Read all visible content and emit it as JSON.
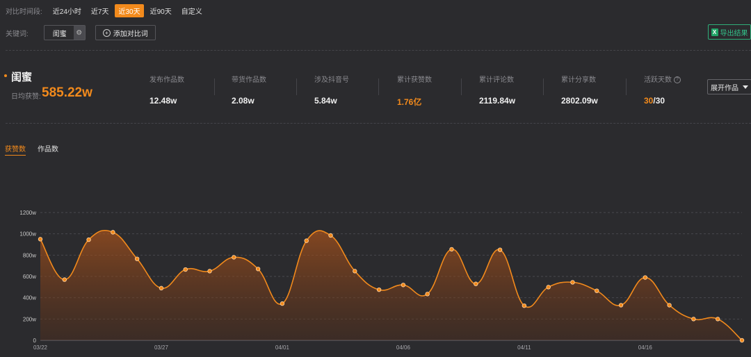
{
  "time_filter": {
    "label": "对比时间段:",
    "options": [
      "近24小时",
      "近7天",
      "近30天",
      "近90天",
      "自定义"
    ],
    "active": "近30天"
  },
  "keyword": {
    "label": "关键词:",
    "value": "闺蜜",
    "add_label": "添加对比词",
    "export_label": "导出结果"
  },
  "summary": {
    "title": "闺蜜",
    "avg_label": "日均获赞:",
    "avg_value": "585.22w",
    "stats": [
      {
        "label": "发布作品数",
        "value": "12.48w"
      },
      {
        "label": "带货作品数",
        "value": "2.08w"
      },
      {
        "label": "涉及抖音号",
        "value": "5.84w"
      },
      {
        "label": "累计获赞数",
        "value": "1.76亿",
        "highlight": true
      },
      {
        "label": "累计评论数",
        "value": "2119.84w"
      },
      {
        "label": "累计分享数",
        "value": "2802.09w"
      },
      {
        "label": "活跃天数",
        "value_a": "30",
        "value_b": "/30"
      }
    ],
    "expand_label": "展开作品"
  },
  "tabs": [
    "获赞数",
    "作品数"
  ],
  "colors": {
    "accent": "#f28a1c",
    "bg": "#2b2b2e",
    "export": "#2fae79"
  },
  "chart_data": {
    "type": "area",
    "x_ticks": [
      "03/22",
      "03/27",
      "04/01",
      "04/06",
      "04/11",
      "04/16"
    ],
    "y_ticks": [
      "0",
      "200w",
      "400w",
      "600w",
      "800w",
      "1000w",
      "1200w"
    ],
    "ylim": [
      0,
      1200
    ],
    "x": [
      "03/22",
      "03/23",
      "03/24",
      "03/25",
      "03/26",
      "03/27",
      "03/28",
      "03/29",
      "03/30",
      "03/31",
      "04/01",
      "04/02",
      "04/03",
      "04/04",
      "04/05",
      "04/06",
      "04/07",
      "04/08",
      "04/09",
      "04/10",
      "04/11",
      "04/12",
      "04/13",
      "04/14",
      "04/15",
      "04/16",
      "04/17",
      "04/18",
      "04/19",
      "04/20"
    ],
    "values": [
      950,
      570,
      945,
      1015,
      765,
      490,
      665,
      650,
      780,
      670,
      345,
      935,
      985,
      650,
      475,
      520,
      435,
      855,
      530,
      850,
      325,
      500,
      545,
      465,
      330,
      590,
      330,
      200,
      200,
      0
    ],
    "grid": true
  }
}
